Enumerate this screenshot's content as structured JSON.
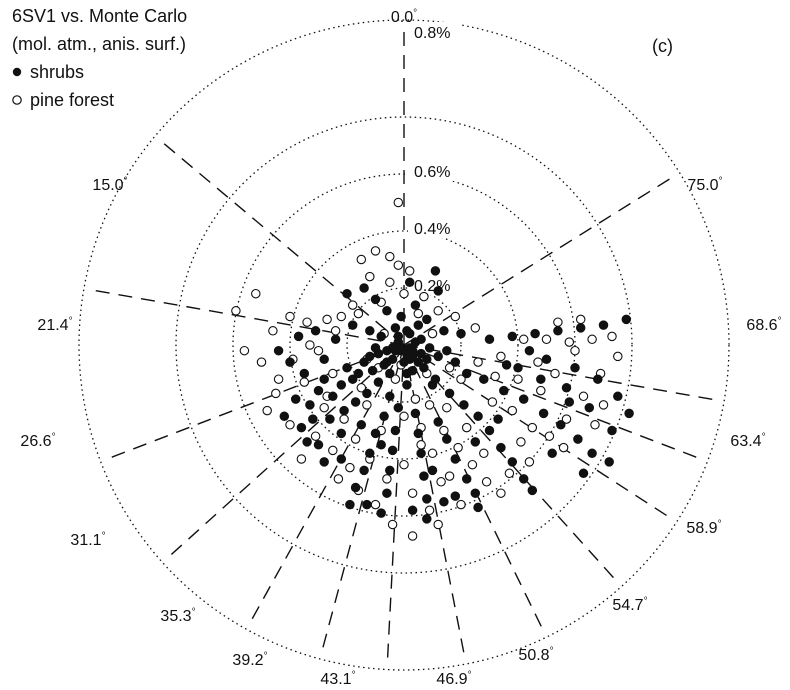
{
  "chart_data": {
    "type": "scatter",
    "coordinate_system": "polar",
    "title_lines": [
      "6SV1 vs. Monte Carlo",
      "(mol. atm., anis. surf.)"
    ],
    "panel_label": "(c)",
    "legend": {
      "placement": "top-left",
      "entries": [
        {
          "marker": "filled-circle",
          "label": "shrubs"
        },
        {
          "marker": "open-circle",
          "label": "pine forest"
        }
      ]
    },
    "radial_axis": {
      "max_percent": 1.0,
      "ticks": [
        0.2,
        0.4,
        0.6,
        0.8
      ],
      "tick_labels": [
        "0.2%",
        "0.4%",
        "0.6%",
        "0.8%"
      ],
      "grid": "dotted"
    },
    "angular_spokes": {
      "style": "dashed",
      "labels": [
        "0.0",
        "15.0",
        "21.4",
        "26.6",
        "31.1",
        "35.3",
        "39.2",
        "43.1",
        "46.9",
        "50.8",
        "54.7",
        "58.9",
        "63.4",
        "68.6",
        "75.0"
      ],
      "label_suffix": "°"
    },
    "series": [
      {
        "name": "shrubs",
        "marker": "filled",
        "points_x_y_percent": [
          [
            0.02,
            -0.01
          ],
          [
            0.03,
            -0.02
          ],
          [
            -0.01,
            -0.02
          ],
          [
            0.01,
            -0.03
          ],
          [
            -0.02,
            0.01
          ],
          [
            0.04,
            0.01
          ],
          [
            -0.03,
            -0.02
          ],
          [
            0.02,
            -0.05
          ],
          [
            -0.04,
            -0.05
          ],
          [
            -0.06,
            -0.02
          ],
          [
            0.06,
            -0.03
          ],
          [
            0.05,
            -0.06
          ],
          [
            -0.07,
            -0.07
          ],
          [
            -0.09,
            -0.03
          ],
          [
            0.08,
            -0.05
          ],
          [
            -0.05,
            -0.1
          ],
          [
            0.03,
            -0.09
          ],
          [
            -0.11,
            -0.09
          ],
          [
            -0.12,
            -0.04
          ],
          [
            -0.14,
            -0.06
          ],
          [
            -0.09,
            -0.13
          ],
          [
            -0.16,
            -0.1
          ],
          [
            -0.18,
            -0.12
          ],
          [
            -0.13,
            -0.17
          ],
          [
            -0.2,
            -0.08
          ],
          [
            -0.22,
            -0.14
          ],
          [
            -0.17,
            -0.2
          ],
          [
            -0.25,
            -0.18
          ],
          [
            -0.21,
            -0.23
          ],
          [
            -0.28,
            -0.12
          ],
          [
            -0.3,
            -0.16
          ],
          [
            -0.26,
            -0.26
          ],
          [
            -0.33,
            -0.21
          ],
          [
            -0.35,
            -0.1
          ],
          [
            -0.38,
            -0.19
          ],
          [
            -0.4,
            -0.06
          ],
          [
            -0.36,
            -0.29
          ],
          [
            -0.42,
            -0.25
          ],
          [
            -0.12,
            0.05
          ],
          [
            -0.18,
            0.07
          ],
          [
            -0.24,
            0.02
          ],
          [
            -0.31,
            0.05
          ],
          [
            -0.37,
            0.03
          ],
          [
            -0.44,
            -0.02
          ],
          [
            -0.3,
            -0.35
          ],
          [
            -0.28,
            -0.41
          ],
          [
            -0.34,
            -0.34
          ],
          [
            -0.05,
            -0.18
          ],
          [
            -0.07,
            -0.25
          ],
          [
            -0.1,
            -0.31
          ],
          [
            -0.12,
            -0.38
          ],
          [
            -0.14,
            -0.44
          ],
          [
            -0.17,
            -0.5
          ],
          [
            -0.19,
            -0.56
          ],
          [
            -0.02,
            -0.22
          ],
          [
            -0.03,
            -0.3
          ],
          [
            -0.04,
            -0.37
          ],
          [
            -0.05,
            -0.44
          ],
          [
            -0.06,
            -0.52
          ],
          [
            -0.08,
            -0.59
          ],
          [
            0.04,
            -0.24
          ],
          [
            0.05,
            -0.31
          ],
          [
            0.06,
            -0.38
          ],
          [
            0.07,
            -0.46
          ],
          [
            0.08,
            -0.54
          ],
          [
            0.08,
            -0.61
          ],
          [
            0.12,
            -0.27
          ],
          [
            0.15,
            -0.33
          ],
          [
            0.18,
            -0.4
          ],
          [
            0.22,
            -0.47
          ],
          [
            0.25,
            -0.52
          ],
          [
            0.26,
            -0.57
          ],
          [
            0.14,
            -0.55
          ],
          [
            0.18,
            -0.53
          ],
          [
            0.21,
            -0.21
          ],
          [
            0.26,
            -0.25
          ],
          [
            0.3,
            -0.3
          ],
          [
            0.34,
            -0.36
          ],
          [
            0.38,
            -0.41
          ],
          [
            0.42,
            -0.47
          ],
          [
            0.45,
            -0.51
          ],
          [
            0.28,
            -0.12
          ],
          [
            0.35,
            -0.16
          ],
          [
            0.42,
            -0.19
          ],
          [
            0.49,
            -0.24
          ],
          [
            0.55,
            -0.28
          ],
          [
            0.61,
            -0.33
          ],
          [
            0.66,
            -0.38
          ],
          [
            0.72,
            -0.41
          ],
          [
            0.3,
            0.02
          ],
          [
            0.38,
            0.03
          ],
          [
            0.46,
            0.04
          ],
          [
            0.54,
            0.05
          ],
          [
            0.62,
            0.06
          ],
          [
            0.7,
            0.07
          ],
          [
            0.78,
            0.09
          ],
          [
            0.5,
            -0.05
          ],
          [
            0.6,
            -0.08
          ],
          [
            0.68,
            -0.12
          ],
          [
            0.75,
            -0.18
          ],
          [
            0.79,
            -0.24
          ],
          [
            0.73,
            -0.3
          ],
          [
            0.58,
            -0.2
          ],
          [
            0.48,
            -0.12
          ],
          [
            0.4,
            -0.08
          ],
          [
            0.18,
            -0.06
          ],
          [
            0.22,
            -0.1
          ],
          [
            0.1,
            -0.14
          ],
          [
            0.14,
            0.05
          ],
          [
            0.2,
            0.04
          ],
          [
            0.08,
            0.09
          ],
          [
            0.04,
            0.14
          ],
          [
            0.02,
            0.22
          ],
          [
            -0.06,
            0.12
          ],
          [
            -0.1,
            0.16
          ],
          [
            -0.14,
            0.2
          ],
          [
            -0.2,
            0.18
          ],
          [
            -0.03,
            0.06
          ],
          [
            0.01,
            0.05
          ],
          [
            0.11,
            0.26
          ],
          [
            0.12,
            0.19
          ],
          [
            -0.01,
            0.1
          ],
          [
            0.05,
            0.07
          ],
          [
            0.09,
            -0.01
          ],
          [
            -0.08,
            0.03
          ],
          [
            -0.28,
            -0.05
          ],
          [
            -0.32,
            -0.26
          ],
          [
            -0.22,
            -0.31
          ],
          [
            -0.15,
            -0.28
          ],
          [
            -0.08,
            -0.35
          ],
          [
            0.01,
            -0.14
          ],
          [
            0.11,
            -0.12
          ],
          [
            0.16,
            -0.17
          ],
          [
            0.25,
            -0.34
          ],
          [
            0.33,
            -0.26
          ],
          [
            0.1,
            -0.44
          ],
          [
            0.03,
            -0.58
          ],
          [
            -0.13,
            -0.56
          ],
          [
            -0.22,
            -0.4
          ],
          [
            0.52,
            -0.38
          ],
          [
            0.63,
            -0.45
          ],
          [
            0.57,
            -0.15
          ],
          [
            0.65,
            -0.22
          ],
          [
            0.44,
            -0.02
          ],
          [
            0.36,
            -0.07
          ],
          [
            0.03,
            -0.04
          ],
          [
            -0.04,
            -0.01
          ],
          [
            0.0,
            -0.06
          ],
          [
            0.06,
            0.02
          ],
          [
            -0.02,
            0.03
          ],
          [
            0.07,
            -0.08
          ],
          [
            -0.06,
            -0.06
          ],
          [
            0.01,
            -0.1
          ],
          [
            -0.1,
            -0.01
          ],
          [
            0.12,
            -0.04
          ],
          [
            0.15,
            -0.02
          ],
          [
            0.02,
            0.04
          ]
        ]
      },
      {
        "name": "pine forest",
        "marker": "open",
        "points_x_y_percent": [
          [
            -0.1,
            0.33
          ],
          [
            -0.02,
            0.28
          ],
          [
            -0.16,
            0.11
          ],
          [
            -0.22,
            0.1
          ],
          [
            -0.27,
            0.09
          ],
          [
            -0.34,
            0.08
          ],
          [
            -0.4,
            0.1
          ],
          [
            -0.46,
            0.05
          ],
          [
            -0.5,
            -0.06
          ],
          [
            -0.45,
            -0.17
          ],
          [
            -0.4,
            -0.28
          ],
          [
            -0.36,
            -0.4
          ],
          [
            -0.31,
            -0.32
          ],
          [
            -0.25,
            -0.37
          ],
          [
            -0.19,
            -0.43
          ],
          [
            -0.16,
            -0.51
          ],
          [
            -0.1,
            -0.56
          ],
          [
            -0.04,
            -0.63
          ],
          [
            0.03,
            -0.67
          ],
          [
            0.12,
            -0.63
          ],
          [
            0.16,
            -0.46
          ],
          [
            0.1,
            -0.38
          ],
          [
            0.06,
            -0.29
          ],
          [
            0.04,
            -0.19
          ],
          [
            0.09,
            -0.21
          ],
          [
            0.14,
            -0.3
          ],
          [
            0.19,
            -0.36
          ],
          [
            0.24,
            -0.42
          ],
          [
            0.29,
            -0.48
          ],
          [
            0.34,
            -0.52
          ],
          [
            0.31,
            -0.2
          ],
          [
            0.38,
            -0.23
          ],
          [
            0.45,
            -0.29
          ],
          [
            0.51,
            -0.32
          ],
          [
            0.57,
            -0.26
          ],
          [
            0.63,
            -0.18
          ],
          [
            0.69,
            -0.1
          ],
          [
            0.75,
            -0.04
          ],
          [
            0.66,
            0.02
          ],
          [
            0.58,
            0.01
          ],
          [
            0.5,
            0.02
          ],
          [
            0.42,
            0.02
          ],
          [
            0.34,
            -0.04
          ],
          [
            0.26,
            -0.06
          ],
          [
            0.2,
            -0.12
          ],
          [
            0.25,
            0.06
          ],
          [
            0.18,
            0.1
          ],
          [
            0.12,
            0.12
          ],
          [
            0.07,
            0.17
          ],
          [
            0.0,
            0.18
          ],
          [
            -0.05,
            0.22
          ],
          [
            -0.12,
            0.24
          ],
          [
            -0.18,
            0.14
          ],
          [
            -0.24,
            0.05
          ],
          [
            -0.3,
            -0.02
          ],
          [
            -0.35,
            -0.13
          ],
          [
            -0.27,
            -0.18
          ],
          [
            -0.21,
            -0.26
          ],
          [
            -0.13,
            -0.21
          ],
          [
            -0.08,
            -0.3
          ],
          [
            -0.12,
            -0.4
          ],
          [
            -0.06,
            -0.47
          ],
          [
            0.0,
            -0.42
          ],
          [
            0.03,
            -0.52
          ],
          [
            0.09,
            -0.58
          ],
          [
            0.2,
            -0.56
          ],
          [
            0.4,
            -0.12
          ],
          [
            0.47,
            -0.06
          ],
          [
            0.53,
            -0.1
          ],
          [
            0.6,
            -0.02
          ],
          [
            0.73,
            0.03
          ],
          [
            0.62,
            0.09
          ],
          [
            0.54,
            0.08
          ],
          [
            0.48,
            -0.16
          ],
          [
            0.41,
            -0.34
          ],
          [
            0.37,
            -0.45
          ],
          [
            0.28,
            -0.38
          ],
          [
            0.22,
            -0.29
          ],
          [
            0.15,
            -0.22
          ],
          [
            0.08,
            -0.1
          ],
          [
            -0.03,
            -0.12
          ],
          [
            -0.09,
            -0.08
          ],
          [
            -0.15,
            -0.15
          ],
          [
            -0.25,
            -0.1
          ],
          [
            -0.33,
            0.0
          ],
          [
            -0.39,
            -0.05
          ],
          [
            -0.44,
            -0.12
          ],
          [
            -0.48,
            -0.23
          ],
          [
            -0.56,
            -0.02
          ],
          [
            -0.59,
            0.12
          ],
          [
            -0.52,
            0.18
          ],
          [
            -0.15,
            0.3
          ],
          [
            -0.05,
            0.31
          ],
          [
            0.02,
            0.26
          ],
          [
            -0.08,
            0.15
          ],
          [
            0.05,
            0.11
          ],
          [
            0.1,
            0.04
          ],
          [
            0.16,
            -0.08
          ],
          [
            -0.01,
            -0.07
          ],
          [
            -0.07,
            0.04
          ],
          [
            -0.13,
            -0.05
          ],
          [
            0.13,
            -0.48
          ],
          [
            0.0,
            -0.25
          ],
          [
            -0.17,
            -0.33
          ],
          [
            -0.28,
            -0.22
          ],
          [
            0.32,
            -0.11
          ],
          [
            0.44,
            -0.41
          ],
          [
            0.56,
            -0.36
          ],
          [
            0.67,
            -0.28
          ],
          [
            0.7,
            -0.21
          ],
          [
            -0.02,
            0.5
          ],
          [
            0.06,
            -0.35
          ],
          [
            -0.23,
            -0.47
          ]
        ]
      }
    ]
  }
}
